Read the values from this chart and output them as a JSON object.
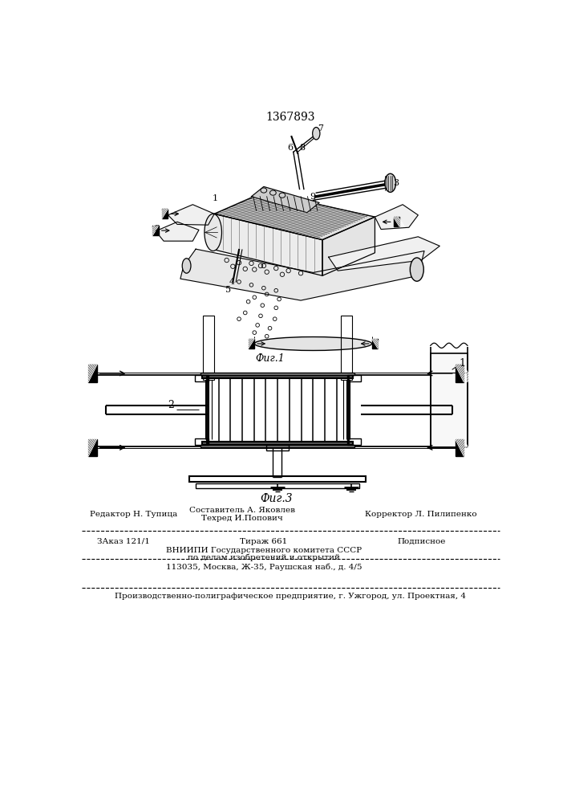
{
  "title": "1367893",
  "fig1_caption": "Фиг.1",
  "fig3_caption": "Фиг.3",
  "footer_line1_left": "Редактор Н. Тупица",
  "footer_line1_center_top": "Составитель А. Яковлев",
  "footer_line1_center_bot": "Техред И.Попович",
  "footer_line1_right": "Корректор Л. Пилипенко",
  "footer_line2_left": "ЗАказ 121/1",
  "footer_line2_center": "Тираж 661",
  "footer_line2_right": "Подписное",
  "footer_line3": "ВНИИПИ Государственного комитета СССР",
  "footer_line4": "по делам изобретений и открытий",
  "footer_line5": "113035, Москва, Ж-35, Раушская наб., д. 4/5",
  "footer_last": "Производственно-полиграфическое предприятие, г. Ужгород, ул. Проектная, 4",
  "bg_color": "#ffffff",
  "line_color": "#000000"
}
